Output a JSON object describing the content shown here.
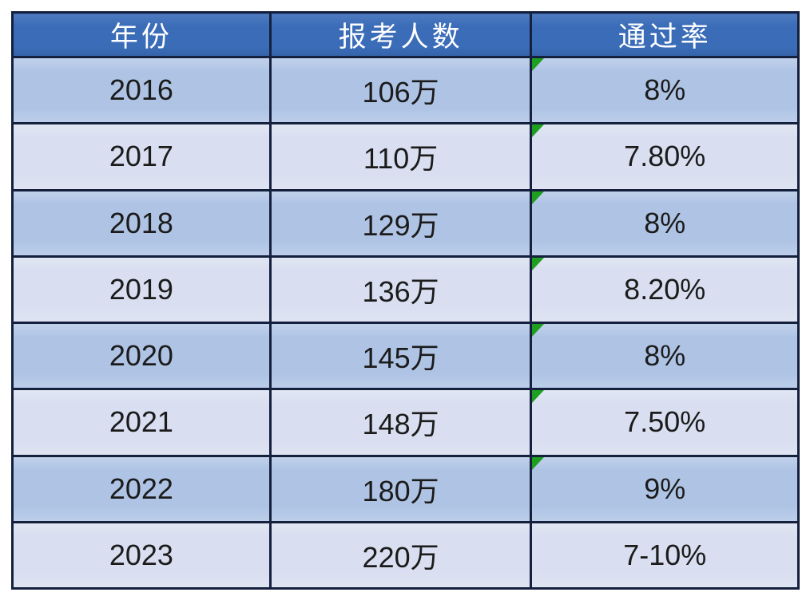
{
  "page": {
    "background": "#ffffff"
  },
  "table": {
    "header": {
      "columns": [
        "年份",
        "报考人数",
        "通过率"
      ]
    },
    "rows": [
      {
        "year": "2016",
        "applicants": "106万",
        "pass_rate": "8%",
        "corner_marker": true
      },
      {
        "year": "2017",
        "applicants": "110万",
        "pass_rate": "7.80%",
        "corner_marker": true
      },
      {
        "year": "2018",
        "applicants": "129万",
        "pass_rate": "8%",
        "corner_marker": true
      },
      {
        "year": "2019",
        "applicants": "136万",
        "pass_rate": "8.20%",
        "corner_marker": true
      },
      {
        "year": "2020",
        "applicants": "145万",
        "pass_rate": "8%",
        "corner_marker": true
      },
      {
        "year": "2021",
        "applicants": "148万",
        "pass_rate": "7.50%",
        "corner_marker": true
      },
      {
        "year": "2022",
        "applicants": "180万",
        "pass_rate": "9%",
        "corner_marker": true
      },
      {
        "year": "2023",
        "applicants": "220万",
        "pass_rate": "7-10%",
        "corner_marker": false
      }
    ],
    "colors": {
      "header_bg": "#3a6cb8",
      "header_text": "#ffffff",
      "row_dark": "#afc4e5",
      "row_light": "#d9dff0",
      "border": "#14203e",
      "cell_text": "#1b1b1b",
      "corner_marker_green": "#1e9f20"
    }
  },
  "chart_data": {
    "type": "table",
    "columns": [
      "年份",
      "报考人数",
      "通过率"
    ],
    "rows": [
      [
        "2016",
        "106万",
        "8%"
      ],
      [
        "2017",
        "110万",
        "7.80%"
      ],
      [
        "2018",
        "129万",
        "8%"
      ],
      [
        "2019",
        "136万",
        "8.20%"
      ],
      [
        "2020",
        "145万",
        "8%"
      ],
      [
        "2021",
        "148万",
        "7.50%"
      ],
      [
        "2022",
        "180万",
        "9%"
      ],
      [
        "2023",
        "220万",
        "7-10%"
      ]
    ]
  }
}
